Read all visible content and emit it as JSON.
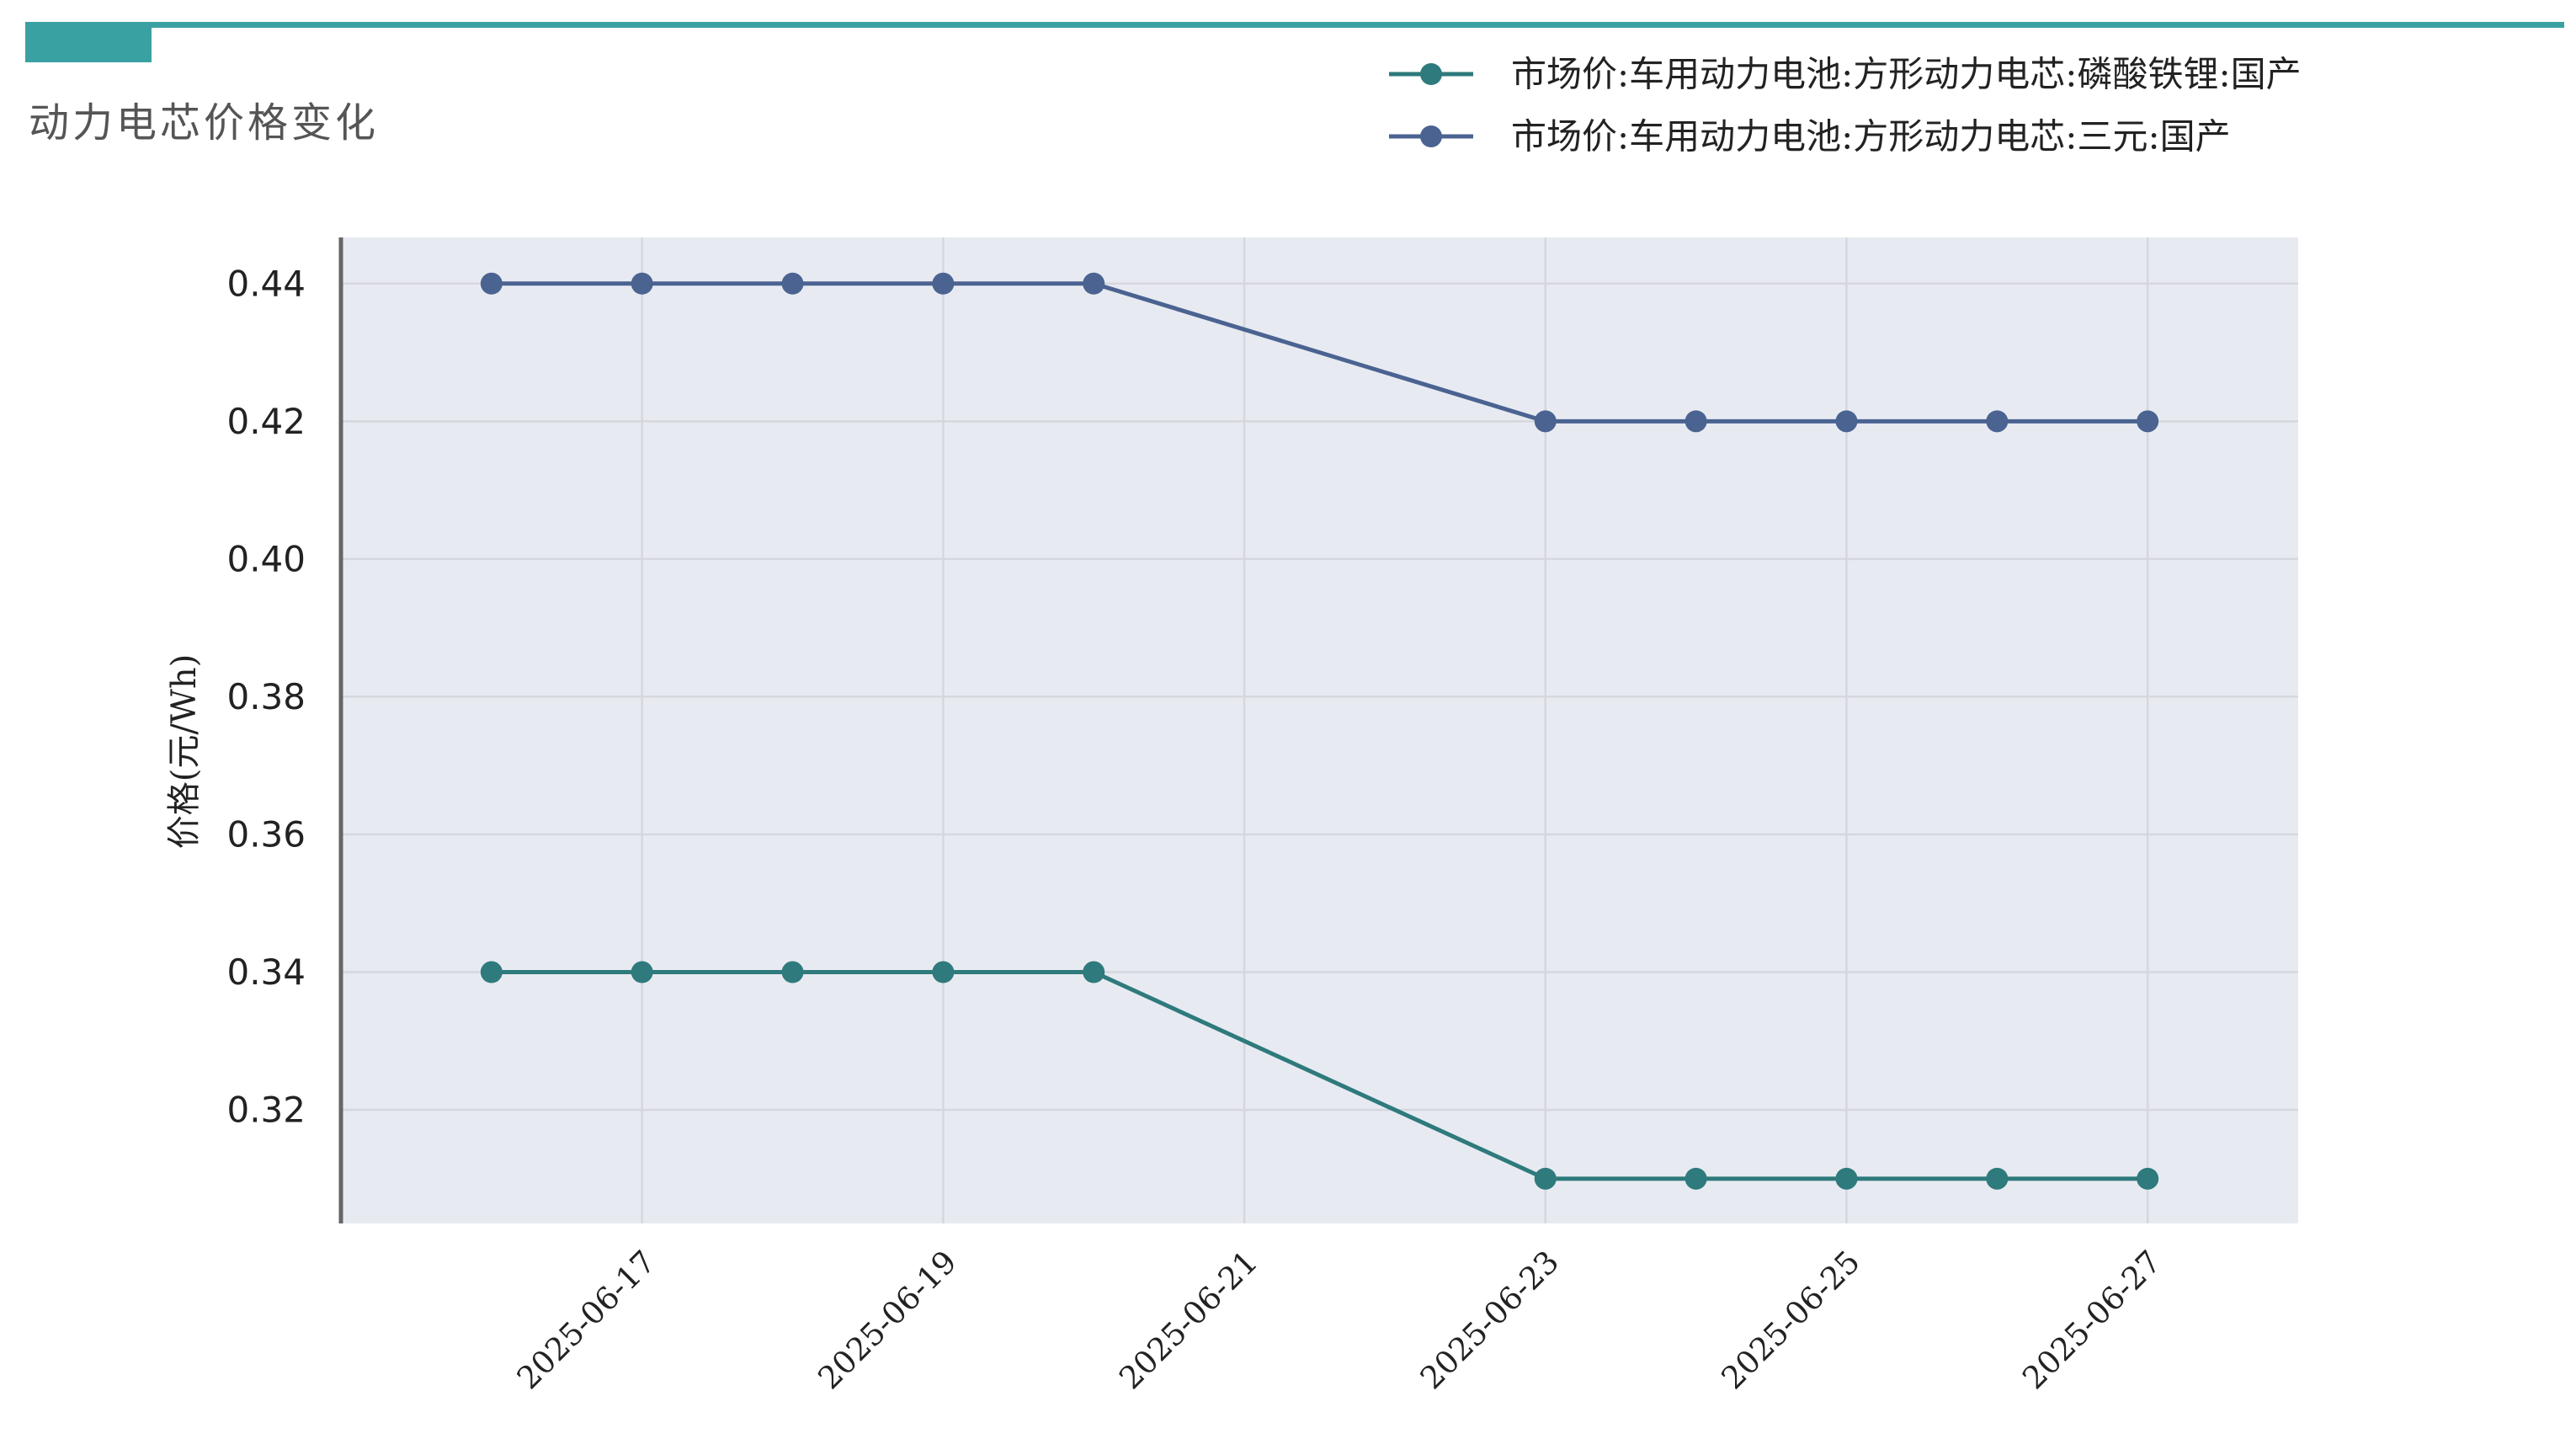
{
  "title": "动力电芯价格变化",
  "colors": {
    "header_accent": "#3aa1a3",
    "plot_background": "#e8eaf2",
    "grid": "#d6d7de",
    "axis": "#666666",
    "tick_text": "#222222"
  },
  "chart_data": {
    "type": "line",
    "title": "动力电芯价格变化",
    "xlabel": "",
    "ylabel": "价格(元/Wh)",
    "ylim": [
      0.3035,
      0.4467
    ],
    "xlim": [
      "2025-06-15",
      "2025-06-28"
    ],
    "grid": true,
    "legend_position": "top-right",
    "x": [
      "2025-06-16",
      "2025-06-17",
      "2025-06-18",
      "2025-06-19",
      "2025-06-20",
      "2025-06-23",
      "2025-06-24",
      "2025-06-25",
      "2025-06-26",
      "2025-06-27"
    ],
    "x_ticks": [
      "2025-06-17",
      "2025-06-19",
      "2025-06-21",
      "2025-06-23",
      "2025-06-25",
      "2025-06-27"
    ],
    "y_ticks": [
      "0.32",
      "0.34",
      "0.36",
      "0.38",
      "0.40",
      "0.42",
      "0.44"
    ],
    "series": [
      {
        "name": "市场价:车用动力电池:方形动力电芯:磷酸铁锂:国产",
        "color": "#2e7a7c",
        "values": [
          0.34,
          0.34,
          0.34,
          0.34,
          0.34,
          0.31,
          0.31,
          0.31,
          0.31,
          0.31
        ]
      },
      {
        "name": "市场价:车用动力电池:方形动力电芯:三元:国产",
        "color": "#4a6391",
        "values": [
          0.44,
          0.44,
          0.44,
          0.44,
          0.44,
          0.42,
          0.42,
          0.42,
          0.42,
          0.42
        ]
      }
    ]
  }
}
